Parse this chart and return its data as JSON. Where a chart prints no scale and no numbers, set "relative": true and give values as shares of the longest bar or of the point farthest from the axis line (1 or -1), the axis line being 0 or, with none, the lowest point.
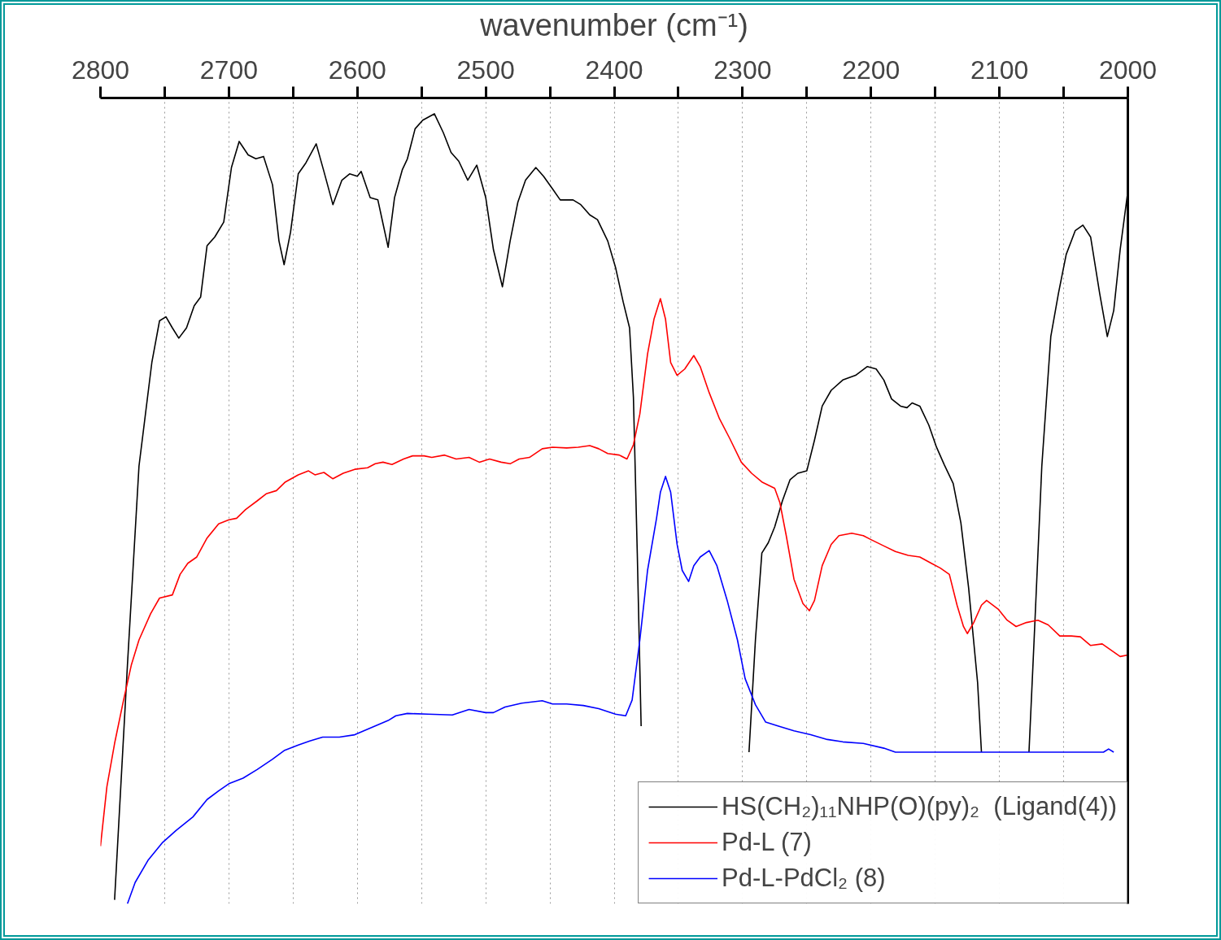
{
  "chart_data": {
    "type": "line",
    "relative": true,
    "xlabel": "wavenumber (cm⁻¹)",
    "xlim": [
      2800,
      2000
    ],
    "xticks": [
      2800,
      {
        "value": 2750,
        "label": null
      },
      2700,
      {
        "value": 2650,
        "label": null
      },
      2600,
      {
        "value": 2550,
        "label": null
      },
      2500,
      {
        "value": 2450,
        "label": null
      },
      2400,
      {
        "value": 2350,
        "label": null
      },
      2300,
      {
        "value": 2250,
        "label": null
      },
      2200,
      {
        "value": 2150,
        "label": null
      },
      2100,
      {
        "value": 2050,
        "label": null
      },
      2000
    ],
    "grid": "x",
    "legend": "bottom right",
    "series": [
      {
        "name": "HS(CH₂)₁₁NHP(O)(py)₂  (Ligand(4))",
        "color": "#000000",
        "x": [
          2789,
          2779,
          2770,
          2760,
          2754,
          2749,
          2744,
          2739,
          2733,
          2727,
          2722,
          2717,
          2711,
          2704,
          2698,
          2692,
          2685,
          2679,
          2673,
          2666,
          2661,
          2657,
          2652,
          2646,
          2640,
          2632,
          2626,
          2619,
          2612,
          2606,
          2600,
          2597,
          2590,
          2584,
          2580,
          2576,
          2571,
          2565,
          2561,
          2555,
          2549,
          2540,
          2533,
          2527,
          2521,
          2514,
          2507,
          2500,
          2494,
          2487,
          2481,
          2475,
          2469,
          2461,
          2455,
          2448,
          2442,
          2432,
          2426,
          2419,
          2413,
          2405,
          2399,
          2393,
          2388,
          2385,
          2382,
          2379,
          2350,
          2295,
          2290,
          2285,
          2280,
          2275,
          2269,
          2263,
          2257,
          2250,
          2244,
          2238,
          2231,
          2222,
          2212,
          2203,
          2196,
          2190,
          2184,
          2177,
          2172,
          2168,
          2162,
          2155,
          2149,
          2143,
          2136,
          2130,
          2124,
          2117,
          2114,
          2100,
          2077,
          2073,
          2067,
          2060,
          2054,
          2048,
          2041,
          2035,
          2029,
          2022,
          2016,
          2011,
          2006,
          2000
        ],
        "values": [
          0.005,
          0.302,
          0.554,
          0.685,
          0.738,
          0.743,
          0.729,
          0.716,
          0.729,
          0.757,
          0.768,
          0.833,
          0.844,
          0.863,
          0.932,
          0.965,
          0.948,
          0.943,
          0.946,
          0.91,
          0.839,
          0.809,
          0.85,
          0.924,
          0.938,
          0.962,
          0.927,
          0.885,
          0.916,
          0.924,
          0.921,
          0.927,
          0.894,
          0.891,
          0.861,
          0.831,
          0.894,
          0.929,
          0.943,
          0.981,
          0.992,
          1.0,
          0.976,
          0.951,
          0.94,
          0.916,
          0.935,
          0.894,
          0.828,
          0.781,
          0.839,
          0.888,
          0.916,
          0.932,
          0.921,
          0.905,
          0.891,
          0.891,
          0.885,
          0.872,
          0.866,
          0.839,
          0.806,
          0.762,
          0.729,
          0.641,
          0.444,
          0.225,
          null,
          0.192,
          0.334,
          0.444,
          0.457,
          0.477,
          0.51,
          0.537,
          0.545,
          0.548,
          0.587,
          0.63,
          0.65,
          0.663,
          0.669,
          0.68,
          0.677,
          0.663,
          0.639,
          0.63,
          0.628,
          0.634,
          0.63,
          0.606,
          0.578,
          0.556,
          0.532,
          0.482,
          0.4,
          0.28,
          0.192,
          null,
          0.192,
          0.334,
          0.554,
          0.718,
          0.773,
          0.822,
          0.852,
          0.859,
          0.844,
          0.773,
          0.718,
          0.751,
          0.828,
          0.902
        ]
      },
      {
        "name": "Pd-L (7)",
        "color": "#ff0000",
        "x": [
          2800,
          2795,
          2789,
          2782,
          2776,
          2770,
          2761,
          2754,
          2744,
          2738,
          2732,
          2725,
          2717,
          2708,
          2700,
          2694,
          2687,
          2678,
          2671,
          2663,
          2656,
          2646,
          2638,
          2633,
          2626,
          2619,
          2611,
          2602,
          2592,
          2586,
          2580,
          2573,
          2564,
          2557,
          2548,
          2542,
          2532,
          2523,
          2513,
          2505,
          2497,
          2488,
          2481,
          2474,
          2466,
          2456,
          2448,
          2437,
          2428,
          2419,
          2412,
          2405,
          2396,
          2390,
          2385,
          2380,
          2374,
          2369,
          2364,
          2360,
          2356,
          2351,
          2345,
          2338,
          2333,
          2326,
          2318,
          2310,
          2301,
          2293,
          2285,
          2275,
          2271,
          2266,
          2260,
          2253,
          2248,
          2244,
          2238,
          2231,
          2225,
          2215,
          2206,
          2200,
          2190,
          2181,
          2171,
          2162,
          2153,
          2146,
          2139,
          2133,
          2128,
          2125,
          2120,
          2114,
          2110,
          2101,
          2094,
          2087,
          2079,
          2070,
          2062,
          2053,
          2044,
          2037,
          2029,
          2020,
          2013,
          2006,
          2000
        ],
        "values": [
          0.073,
          0.148,
          0.203,
          0.258,
          0.302,
          0.334,
          0.367,
          0.387,
          0.391,
          0.417,
          0.431,
          0.439,
          0.463,
          0.481,
          0.486,
          0.488,
          0.499,
          0.51,
          0.519,
          0.523,
          0.534,
          0.543,
          0.548,
          0.543,
          0.546,
          0.538,
          0.545,
          0.55,
          0.552,
          0.557,
          0.559,
          0.556,
          0.563,
          0.567,
          0.567,
          0.565,
          0.568,
          0.563,
          0.565,
          0.559,
          0.563,
          0.559,
          0.557,
          0.563,
          0.565,
          0.576,
          0.578,
          0.577,
          0.578,
          0.58,
          0.576,
          0.57,
          0.568,
          0.563,
          0.581,
          0.62,
          0.696,
          0.74,
          0.766,
          0.74,
          0.685,
          0.669,
          0.677,
          0.694,
          0.68,
          0.647,
          0.614,
          0.589,
          0.559,
          0.545,
          0.534,
          0.526,
          0.508,
          0.466,
          0.411,
          0.38,
          0.371,
          0.384,
          0.428,
          0.455,
          0.466,
          0.469,
          0.466,
          0.461,
          0.453,
          0.446,
          0.441,
          0.439,
          0.431,
          0.425,
          0.417,
          0.378,
          0.351,
          0.342,
          0.356,
          0.378,
          0.384,
          0.373,
          0.359,
          0.351,
          0.356,
          0.359,
          0.353,
          0.339,
          0.339,
          0.338,
          0.327,
          0.329,
          0.321,
          0.313,
          0.315
        ]
      },
      {
        "name": "Pd-L-PdCl₂ (8)",
        "color": "#0000ff",
        "x": [
          2779,
          2773,
          2763,
          2752,
          2741,
          2728,
          2717,
          2708,
          2700,
          2689,
          2678,
          2666,
          2657,
          2646,
          2637,
          2627,
          2614,
          2602,
          2589,
          2576,
          2570,
          2561,
          2545,
          2526,
          2513,
          2500,
          2494,
          2485,
          2472,
          2456,
          2448,
          2437,
          2424,
          2412,
          2399,
          2391,
          2386,
          2380,
          2374,
          2367,
          2364,
          2360,
          2356,
          2351,
          2347,
          2342,
          2338,
          2333,
          2326,
          2320,
          2312,
          2304,
          2298,
          2290,
          2282,
          2272,
          2260,
          2247,
          2234,
          2222,
          2206,
          2190,
          2181,
          2019,
          2015,
          2011
        ],
        "values": [
          0,
          0.027,
          0.055,
          0.077,
          0.093,
          0.11,
          0.132,
          0.143,
          0.152,
          0.159,
          0.17,
          0.183,
          0.194,
          0.201,
          0.206,
          0.211,
          0.211,
          0.214,
          0.223,
          0.232,
          0.238,
          0.241,
          0.24,
          0.239,
          0.246,
          0.242,
          0.242,
          0.249,
          0.254,
          0.257,
          0.253,
          0.253,
          0.251,
          0.247,
          0.24,
          0.238,
          0.258,
          0.334,
          0.422,
          0.488,
          0.521,
          0.541,
          0.521,
          0.455,
          0.422,
          0.408,
          0.428,
          0.439,
          0.447,
          0.428,
          0.384,
          0.334,
          0.285,
          0.252,
          0.23,
          0.225,
          0.219,
          0.214,
          0.208,
          0.205,
          0.203,
          0.197,
          0.192,
          0.192,
          0.196,
          0.192
        ]
      }
    ]
  }
}
